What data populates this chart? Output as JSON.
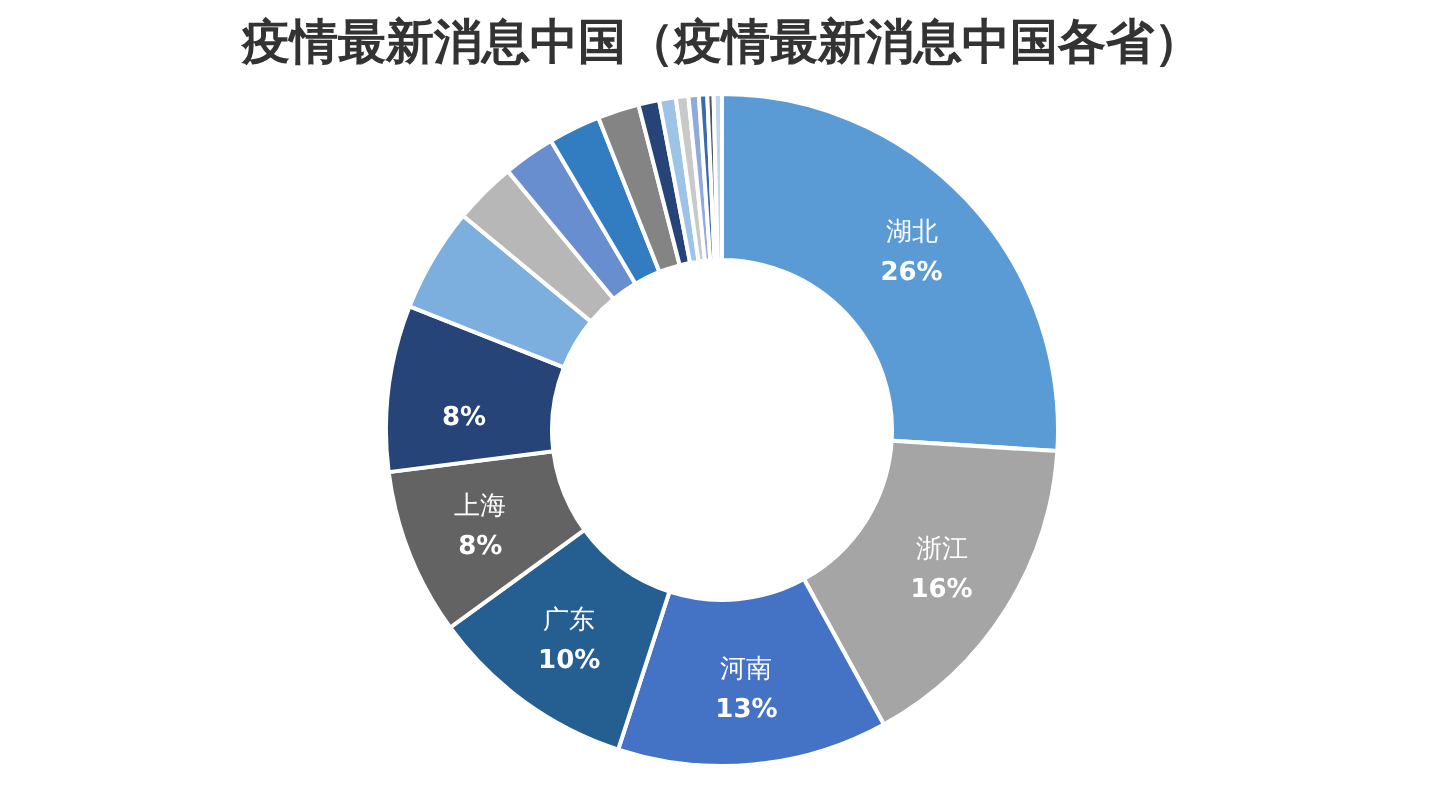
{
  "chart_data": {
    "type": "donut",
    "title": "疫情最新消息中国（疫情最新消息中国各省）",
    "categories": [
      "湖北",
      "浙江",
      "河南",
      "广东",
      "上海",
      null,
      null,
      null,
      null,
      null,
      null,
      null,
      null,
      null,
      null,
      null,
      null,
      null
    ],
    "values": [
      26,
      16,
      13,
      10,
      8,
      8,
      5,
      3,
      2.5,
      2.5,
      2,
      1,
      0.8,
      0.6,
      0.5,
      0.4,
      0.3,
      0.4
    ],
    "colors": [
      "#5b9bd5",
      "#a5a5a5",
      "#4472c4",
      "#255e91",
      "#636363",
      "#264478",
      "#7cafdd",
      "#b7b7b7",
      "#698ed0",
      "#327dc2",
      "#848484",
      "#264478",
      "#9dc3e6",
      "#c9c9c9",
      "#8faadc",
      "#3a6aaf",
      "#555555",
      "#bdd7ee"
    ],
    "value_labels": [
      "26%",
      "16%",
      "13%",
      "10%",
      "8%",
      "8%",
      null,
      null,
      null,
      null,
      null,
      null,
      null,
      null,
      null,
      null,
      null,
      null
    ]
  }
}
